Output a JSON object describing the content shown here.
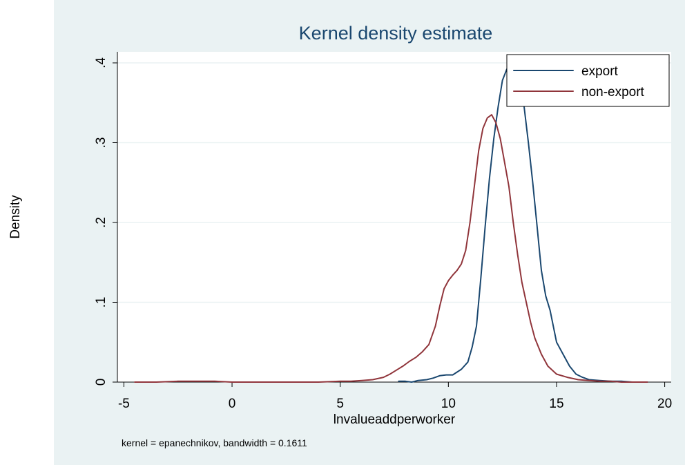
{
  "chart_data": {
    "type": "line",
    "title": "Kernel density estimate",
    "xlabel": "lnvalueaddperworker",
    "ylabel": "Density",
    "note": "kernel = epanechnikov, bandwidth = 0.1611",
    "xlim": [
      -5.3,
      20.3
    ],
    "ylim": [
      0,
      0.4
    ],
    "xticks": [
      -5,
      0,
      5,
      10,
      15,
      20
    ],
    "xtick_labels": [
      "-5",
      "0",
      "5",
      "10",
      "15",
      "20"
    ],
    "yticks": [
      0,
      0.1,
      0.2,
      0.3,
      0.4
    ],
    "ytick_labels": [
      "0",
      ".1",
      ".2",
      ".3",
      ".4"
    ],
    "grid": true,
    "legend_position": "top-right",
    "series": [
      {
        "name": "export",
        "color": "#1a476f",
        "x": [
          7.7,
          8.0,
          8.3,
          8.6,
          9.0,
          9.3,
          9.6,
          9.9,
          10.2,
          10.6,
          10.9,
          11.1,
          11.3,
          11.5,
          11.7,
          11.9,
          12.1,
          12.3,
          12.5,
          12.7,
          12.9,
          13.1,
          13.3,
          13.5,
          13.7,
          13.9,
          14.1,
          14.3,
          14.5,
          14.7,
          15.0,
          15.3,
          15.6,
          15.9,
          16.2,
          16.5,
          17.0,
          17.5,
          18.0,
          18.5,
          19.2
        ],
        "y": [
          0.001,
          0.001,
          0.0,
          0.002,
          0.003,
          0.005,
          0.008,
          0.009,
          0.009,
          0.016,
          0.025,
          0.044,
          0.07,
          0.13,
          0.195,
          0.255,
          0.305,
          0.345,
          0.378,
          0.392,
          0.396,
          0.392,
          0.378,
          0.345,
          0.3,
          0.25,
          0.195,
          0.14,
          0.108,
          0.09,
          0.05,
          0.035,
          0.02,
          0.01,
          0.006,
          0.003,
          0.002,
          0.001,
          0.001,
          0.0,
          0.0
        ]
      },
      {
        "name": "non-export",
        "color": "#90353b",
        "x": [
          -4.5,
          -3.5,
          -2.5,
          -1.5,
          -0.8,
          0.0,
          1.0,
          2.0,
          3.0,
          4.0,
          5.0,
          5.5,
          6.0,
          6.5,
          7.0,
          7.3,
          7.6,
          7.9,
          8.2,
          8.5,
          8.8,
          9.1,
          9.4,
          9.6,
          9.8,
          10.0,
          10.2,
          10.4,
          10.6,
          10.8,
          11.0,
          11.2,
          11.4,
          11.6,
          11.8,
          12.0,
          12.2,
          12.4,
          12.6,
          12.8,
          13.0,
          13.2,
          13.4,
          13.6,
          13.8,
          14.0,
          14.3,
          14.6,
          15.0,
          15.5,
          16.0,
          16.5,
          17.0,
          17.5,
          18.0,
          18.5,
          19.2
        ],
        "y": [
          0.0,
          0.0,
          0.001,
          0.001,
          0.001,
          0.0,
          0.0,
          0.0,
          0.0,
          0.0,
          0.001,
          0.001,
          0.002,
          0.003,
          0.006,
          0.01,
          0.015,
          0.02,
          0.026,
          0.031,
          0.038,
          0.047,
          0.07,
          0.095,
          0.117,
          0.127,
          0.134,
          0.14,
          0.148,
          0.165,
          0.2,
          0.245,
          0.29,
          0.318,
          0.331,
          0.335,
          0.325,
          0.305,
          0.275,
          0.245,
          0.2,
          0.16,
          0.125,
          0.1,
          0.075,
          0.055,
          0.035,
          0.02,
          0.01,
          0.006,
          0.003,
          0.002,
          0.001,
          0.001,
          0.0,
          0.0,
          0.0
        ]
      }
    ]
  }
}
